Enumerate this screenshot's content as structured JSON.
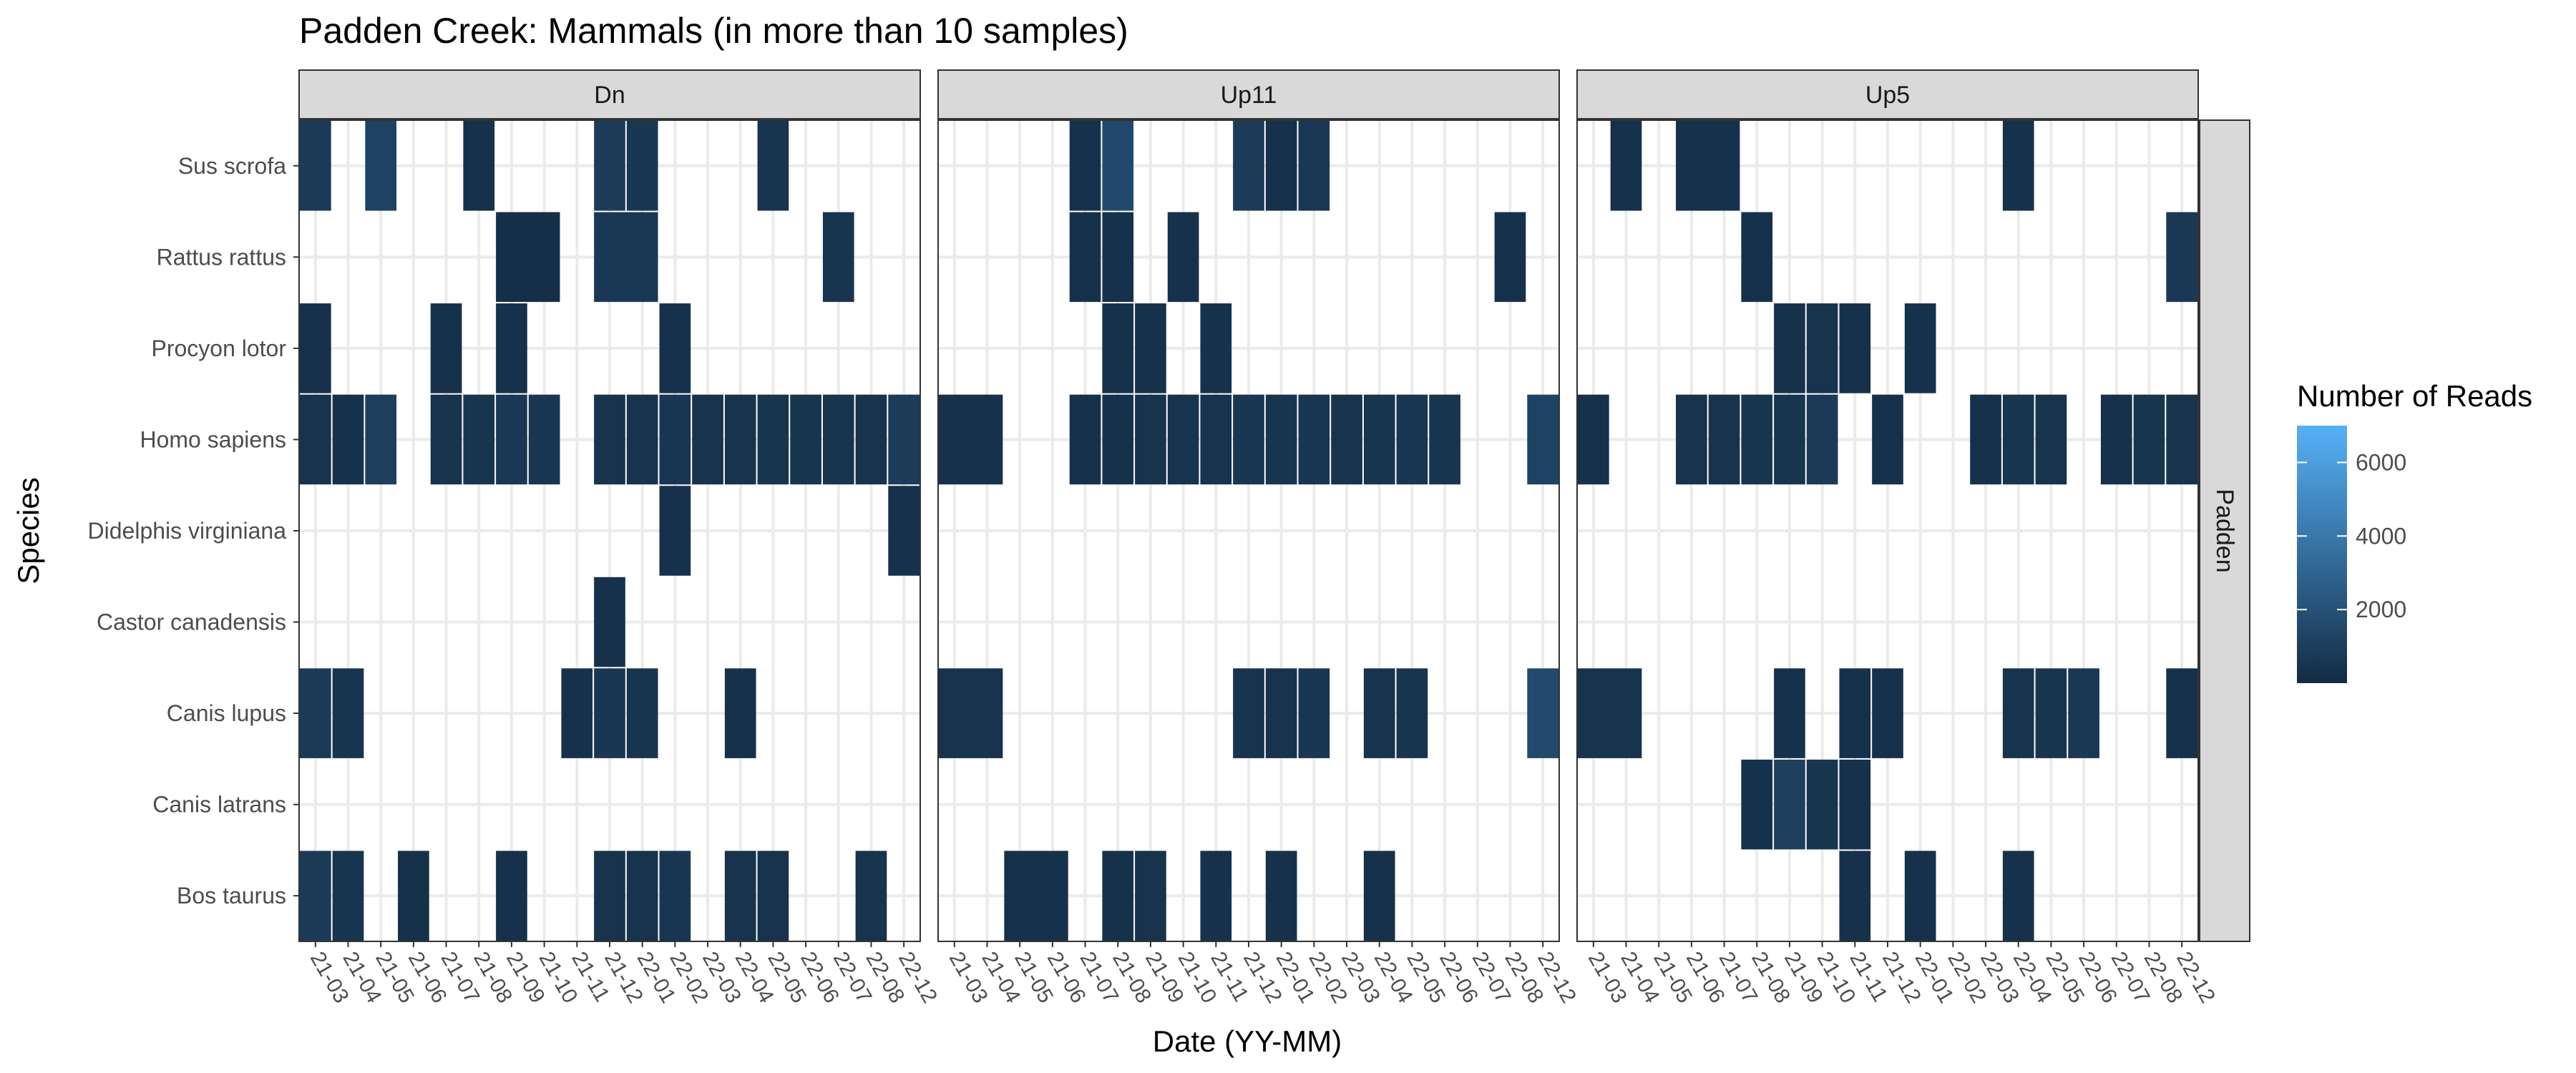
{
  "chart_data": {
    "type": "heatmap",
    "title": "Padden Creek: Mammals (in more than 10 samples)",
    "xlabel": "Date (YY-MM)",
    "ylabel": "Species",
    "facet_row_label": "Padden",
    "dates": [
      "21-03",
      "21-04",
      "21-05",
      "21-06",
      "21-07",
      "21-08",
      "21-09",
      "21-10",
      "21-11",
      "21-12",
      "22-01",
      "22-02",
      "22-03",
      "22-04",
      "22-05",
      "22-06",
      "22-07",
      "22-08",
      "22-12"
    ],
    "species": [
      "Bos taurus",
      "Canis latrans",
      "Canis lupus",
      "Castor canadensis",
      "Didelphis virginiana",
      "Homo sapiens",
      "Procyon lotor",
      "Rattus rattus",
      "Sus scrofa"
    ],
    "legend": {
      "title": "Number of Reads",
      "min": 0,
      "max": 7000,
      "ticks": [
        2000,
        4000,
        6000
      ],
      "low_color": "#132b43",
      "high_color": "#56b1f7"
    },
    "grid": true,
    "legend_position": "right",
    "panels": [
      {
        "name": "Dn",
        "cells": [
          {
            "species": "Sus scrofa",
            "x": 0,
            "span": 1,
            "value": 800
          },
          {
            "species": "Sus scrofa",
            "x": 2,
            "span": 1,
            "value": 1200
          },
          {
            "species": "Sus scrofa",
            "x": 5,
            "span": 1,
            "value": 300
          },
          {
            "species": "Sus scrofa",
            "x": 9,
            "span": 1,
            "value": 900
          },
          {
            "species": "Sus scrofa",
            "x": 10,
            "span": 1,
            "value": 600
          },
          {
            "species": "Sus scrofa",
            "x": 14,
            "span": 1,
            "value": 500
          },
          {
            "species": "Rattus rattus",
            "x": 6,
            "span": 2,
            "value": 200
          },
          {
            "species": "Rattus rattus",
            "x": 9,
            "span": 2,
            "value": 700
          },
          {
            "species": "Rattus rattus",
            "x": 16,
            "span": 1,
            "value": 500
          },
          {
            "species": "Procyon lotor",
            "x": 0,
            "span": 1,
            "value": 300
          },
          {
            "species": "Procyon lotor",
            "x": 4,
            "span": 1,
            "value": 300
          },
          {
            "species": "Procyon lotor",
            "x": 6,
            "span": 1,
            "value": 300
          },
          {
            "species": "Procyon lotor",
            "x": 11,
            "span": 1,
            "value": 300
          },
          {
            "species": "Homo sapiens",
            "x": 0,
            "span": 1,
            "value": 400
          },
          {
            "species": "Homo sapiens",
            "x": 1,
            "span": 1,
            "value": 300
          },
          {
            "species": "Homo sapiens",
            "x": 2,
            "span": 1,
            "value": 1000
          },
          {
            "species": "Homo sapiens",
            "x": 4,
            "span": 1,
            "value": 400
          },
          {
            "species": "Homo sapiens",
            "x": 5,
            "span": 1,
            "value": 500
          },
          {
            "species": "Homo sapiens",
            "x": 6,
            "span": 1,
            "value": 700
          },
          {
            "species": "Homo sapiens",
            "x": 7,
            "span": 1,
            "value": 600
          },
          {
            "species": "Homo sapiens",
            "x": 9,
            "span": 1,
            "value": 400
          },
          {
            "species": "Homo sapiens",
            "x": 10,
            "span": 1,
            "value": 400
          },
          {
            "species": "Homo sapiens",
            "x": 11,
            "span": 1,
            "value": 600
          },
          {
            "species": "Homo sapiens",
            "x": 12,
            "span": 1,
            "value": 400
          },
          {
            "species": "Homo sapiens",
            "x": 13,
            "span": 1,
            "value": 400
          },
          {
            "species": "Homo sapiens",
            "x": 14,
            "span": 1,
            "value": 500
          },
          {
            "species": "Homo sapiens",
            "x": 15,
            "span": 1,
            "value": 500
          },
          {
            "species": "Homo sapiens",
            "x": 16,
            "span": 1,
            "value": 500
          },
          {
            "species": "Homo sapiens",
            "x": 17,
            "span": 1,
            "value": 400
          },
          {
            "species": "Homo sapiens",
            "x": 18,
            "span": 1,
            "value": 900
          },
          {
            "species": "Didelphis virginiana",
            "x": 11,
            "span": 1,
            "value": 300
          },
          {
            "species": "Didelphis virginiana",
            "x": 18,
            "span": 1,
            "value": 300
          },
          {
            "species": "Castor canadensis",
            "x": 9,
            "span": 1,
            "value": 300
          },
          {
            "species": "Canis lupus",
            "x": 0,
            "span": 1,
            "value": 800
          },
          {
            "species": "Canis lupus",
            "x": 1,
            "span": 1,
            "value": 500
          },
          {
            "species": "Canis lupus",
            "x": 8,
            "span": 1,
            "value": 300
          },
          {
            "species": "Canis lupus",
            "x": 9,
            "span": 1,
            "value": 600
          },
          {
            "species": "Canis lupus",
            "x": 10,
            "span": 1,
            "value": 500
          },
          {
            "species": "Canis lupus",
            "x": 13,
            "span": 1,
            "value": 300
          },
          {
            "species": "Bos taurus",
            "x": 0,
            "span": 1,
            "value": 800
          },
          {
            "species": "Bos taurus",
            "x": 1,
            "span": 1,
            "value": 500
          },
          {
            "species": "Bos taurus",
            "x": 3,
            "span": 1,
            "value": 300
          },
          {
            "species": "Bos taurus",
            "x": 6,
            "span": 1,
            "value": 300
          },
          {
            "species": "Bos taurus",
            "x": 9,
            "span": 1,
            "value": 400
          },
          {
            "species": "Bos taurus",
            "x": 10,
            "span": 1,
            "value": 400
          },
          {
            "species": "Bos taurus",
            "x": 11,
            "span": 1,
            "value": 600
          },
          {
            "species": "Bos taurus",
            "x": 13,
            "span": 1,
            "value": 400
          },
          {
            "species": "Bos taurus",
            "x": 14,
            "span": 1,
            "value": 400
          },
          {
            "species": "Bos taurus",
            "x": 17,
            "span": 1,
            "value": 400
          }
        ]
      },
      {
        "name": "Up11",
        "cells": [
          {
            "species": "Sus scrofa",
            "x": 4,
            "span": 1,
            "value": 300
          },
          {
            "species": "Sus scrofa",
            "x": 5,
            "span": 1,
            "value": 1500
          },
          {
            "species": "Sus scrofa",
            "x": 9,
            "span": 1,
            "value": 900
          },
          {
            "species": "Sus scrofa",
            "x": 10,
            "span": 1,
            "value": 300
          },
          {
            "species": "Sus scrofa",
            "x": 11,
            "span": 1,
            "value": 700
          },
          {
            "species": "Rattus rattus",
            "x": 4,
            "span": 1,
            "value": 300
          },
          {
            "species": "Rattus rattus",
            "x": 5,
            "span": 1,
            "value": 300
          },
          {
            "species": "Rattus rattus",
            "x": 7,
            "span": 1,
            "value": 300
          },
          {
            "species": "Rattus rattus",
            "x": 17,
            "span": 1,
            "value": 300
          },
          {
            "species": "Procyon lotor",
            "x": 5,
            "span": 1,
            "value": 300
          },
          {
            "species": "Procyon lotor",
            "x": 6,
            "span": 1,
            "value": 300
          },
          {
            "species": "Procyon lotor",
            "x": 8,
            "span": 1,
            "value": 300
          },
          {
            "species": "Homo sapiens",
            "x": 0,
            "span": 2,
            "value": 300
          },
          {
            "species": "Homo sapiens",
            "x": 4,
            "span": 1,
            "value": 300
          },
          {
            "species": "Homo sapiens",
            "x": 5,
            "span": 1,
            "value": 300
          },
          {
            "species": "Homo sapiens",
            "x": 6,
            "span": 1,
            "value": 400
          },
          {
            "species": "Homo sapiens",
            "x": 7,
            "span": 1,
            "value": 400
          },
          {
            "species": "Homo sapiens",
            "x": 8,
            "span": 1,
            "value": 400
          },
          {
            "species": "Homo sapiens",
            "x": 9,
            "span": 1,
            "value": 600
          },
          {
            "species": "Homo sapiens",
            "x": 10,
            "span": 1,
            "value": 500
          },
          {
            "species": "Homo sapiens",
            "x": 11,
            "span": 1,
            "value": 600
          },
          {
            "species": "Homo sapiens",
            "x": 12,
            "span": 1,
            "value": 400
          },
          {
            "species": "Homo sapiens",
            "x": 13,
            "span": 1,
            "value": 500
          },
          {
            "species": "Homo sapiens",
            "x": 14,
            "span": 1,
            "value": 600
          },
          {
            "species": "Homo sapiens",
            "x": 15,
            "span": 1,
            "value": 500
          },
          {
            "species": "Homo sapiens",
            "x": 18,
            "span": 1,
            "value": 1200
          },
          {
            "species": "Canis lupus",
            "x": 0,
            "span": 2,
            "value": 400
          },
          {
            "species": "Canis lupus",
            "x": 9,
            "span": 1,
            "value": 400
          },
          {
            "species": "Canis lupus",
            "x": 10,
            "span": 1,
            "value": 400
          },
          {
            "species": "Canis lupus",
            "x": 11,
            "span": 1,
            "value": 600
          },
          {
            "species": "Canis lupus",
            "x": 13,
            "span": 1,
            "value": 400
          },
          {
            "species": "Canis lupus",
            "x": 14,
            "span": 1,
            "value": 500
          },
          {
            "species": "Canis lupus",
            "x": 18,
            "span": 1,
            "value": 1600
          },
          {
            "species": "Bos taurus",
            "x": 2,
            "span": 2,
            "value": 300
          },
          {
            "species": "Bos taurus",
            "x": 5,
            "span": 1,
            "value": 300
          },
          {
            "species": "Bos taurus",
            "x": 6,
            "span": 1,
            "value": 400
          },
          {
            "species": "Bos taurus",
            "x": 8,
            "span": 1,
            "value": 300
          },
          {
            "species": "Bos taurus",
            "x": 10,
            "span": 1,
            "value": 300
          },
          {
            "species": "Bos taurus",
            "x": 13,
            "span": 1,
            "value": 300
          }
        ]
      },
      {
        "name": "Up5",
        "cells": [
          {
            "species": "Sus scrofa",
            "x": 1,
            "span": 1,
            "value": 300
          },
          {
            "species": "Sus scrofa",
            "x": 3,
            "span": 2,
            "value": 300
          },
          {
            "species": "Sus scrofa",
            "x": 13,
            "span": 1,
            "value": 300
          },
          {
            "species": "Rattus rattus",
            "x": 5,
            "span": 1,
            "value": 300
          },
          {
            "species": "Rattus rattus",
            "x": 18,
            "span": 1,
            "value": 700
          },
          {
            "species": "Procyon lotor",
            "x": 6,
            "span": 1,
            "value": 300
          },
          {
            "species": "Procyon lotor",
            "x": 7,
            "span": 1,
            "value": 400
          },
          {
            "species": "Procyon lotor",
            "x": 8,
            "span": 1,
            "value": 300
          },
          {
            "species": "Procyon lotor",
            "x": 10,
            "span": 1,
            "value": 300
          },
          {
            "species": "Homo sapiens",
            "x": 0,
            "span": 1,
            "value": 300
          },
          {
            "species": "Homo sapiens",
            "x": 3,
            "span": 1,
            "value": 400
          },
          {
            "species": "Homo sapiens",
            "x": 4,
            "span": 1,
            "value": 400
          },
          {
            "species": "Homo sapiens",
            "x": 5,
            "span": 1,
            "value": 500
          },
          {
            "species": "Homo sapiens",
            "x": 6,
            "span": 1,
            "value": 500
          },
          {
            "species": "Homo sapiens",
            "x": 7,
            "span": 1,
            "value": 800
          },
          {
            "species": "Homo sapiens",
            "x": 9,
            "span": 1,
            "value": 300
          },
          {
            "species": "Homo sapiens",
            "x": 12,
            "span": 1,
            "value": 300
          },
          {
            "species": "Homo sapiens",
            "x": 13,
            "span": 1,
            "value": 500
          },
          {
            "species": "Homo sapiens",
            "x": 14,
            "span": 1,
            "value": 400
          },
          {
            "species": "Homo sapiens",
            "x": 16,
            "span": 1,
            "value": 300
          },
          {
            "species": "Homo sapiens",
            "x": 17,
            "span": 1,
            "value": 500
          },
          {
            "species": "Homo sapiens",
            "x": 18,
            "span": 1,
            "value": 400
          },
          {
            "species": "Canis lupus",
            "x": 0,
            "span": 2,
            "value": 400
          },
          {
            "species": "Canis lupus",
            "x": 6,
            "span": 1,
            "value": 300
          },
          {
            "species": "Canis lupus",
            "x": 8,
            "span": 1,
            "value": 300
          },
          {
            "species": "Canis lupus",
            "x": 9,
            "span": 1,
            "value": 300
          },
          {
            "species": "Canis lupus",
            "x": 13,
            "span": 1,
            "value": 400
          },
          {
            "species": "Canis lupus",
            "x": 14,
            "span": 1,
            "value": 500
          },
          {
            "species": "Canis lupus",
            "x": 15,
            "span": 1,
            "value": 700
          },
          {
            "species": "Canis lupus",
            "x": 18,
            "span": 1,
            "value": 300
          },
          {
            "species": "Canis latrans",
            "x": 5,
            "span": 1,
            "value": 300
          },
          {
            "species": "Canis latrans",
            "x": 6,
            "span": 1,
            "value": 1100
          },
          {
            "species": "Canis latrans",
            "x": 7,
            "span": 1,
            "value": 500
          },
          {
            "species": "Canis latrans",
            "x": 8,
            "span": 1,
            "value": 300
          },
          {
            "species": "Bos taurus",
            "x": 8,
            "span": 1,
            "value": 300
          },
          {
            "species": "Bos taurus",
            "x": 10,
            "span": 1,
            "value": 300
          },
          {
            "species": "Bos taurus",
            "x": 13,
            "span": 1,
            "value": 300
          }
        ]
      }
    ]
  }
}
